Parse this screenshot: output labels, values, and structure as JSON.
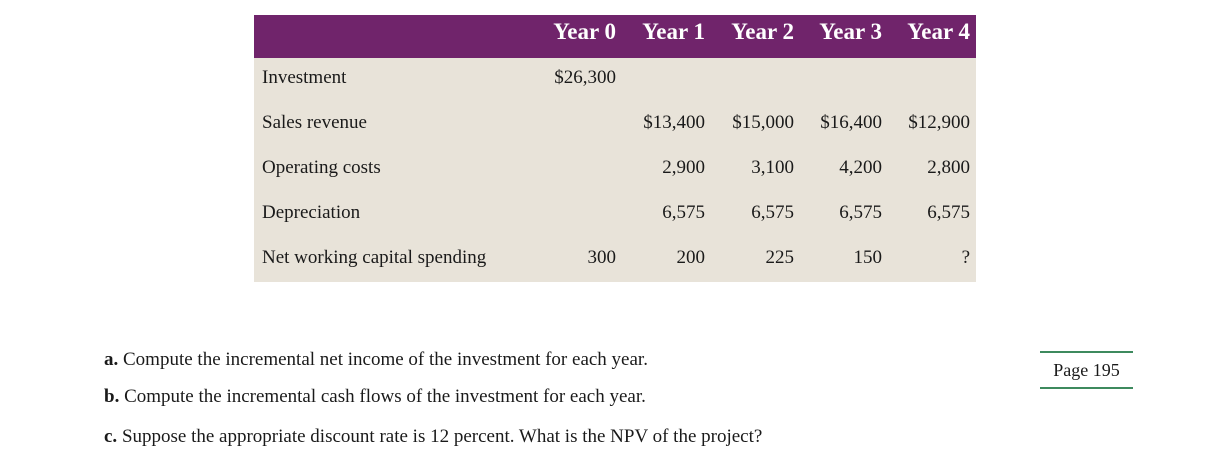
{
  "table": {
    "headers": [
      "Year 0",
      "Year 1",
      "Year 2",
      "Year 3",
      "Year 4"
    ],
    "rows": [
      {
        "label": "Investment",
        "values": [
          "$26,300",
          "",
          "",
          "",
          ""
        ]
      },
      {
        "label": "Sales revenue",
        "values": [
          "",
          "$13,400",
          "$15,000",
          "$16,400",
          "$12,900"
        ]
      },
      {
        "label": "Operating costs",
        "values": [
          "",
          "2,900",
          "3,100",
          "4,200",
          "2,800"
        ]
      },
      {
        "label": "Depreciation",
        "values": [
          "",
          "6,575",
          "6,575",
          "6,575",
          "6,575"
        ]
      },
      {
        "label": "Net working capital spending",
        "values": [
          "300",
          "200",
          "225",
          "150",
          "?"
        ]
      }
    ]
  },
  "questions": [
    {
      "letter": "a.",
      "text": " Compute the incremental net income of the investment for each year."
    },
    {
      "letter": "b.",
      "text": " Compute the incremental cash flows of the investment for each year."
    },
    {
      "letter": "c.",
      "text": " Suppose the appropriate discount rate is 12 percent. What is the NPV of the project?"
    }
  ],
  "page_label": "Page 195",
  "colors": {
    "header": "#70246b",
    "table_bg": "#e8e3d9",
    "page_rule": "#3e8a5e"
  }
}
